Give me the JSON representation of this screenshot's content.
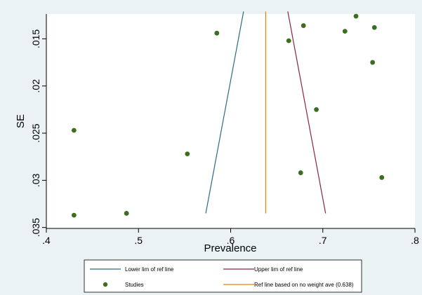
{
  "chart_data": {
    "type": "scatter",
    "xlabel": "Prevalence",
    "ylabel": "SE",
    "xlim": [
      0.4,
      0.8
    ],
    "ylim": [
      0.012,
      0.035
    ],
    "y_reversed": true,
    "x_ticks": [
      0.4,
      0.5,
      0.6,
      0.7,
      0.8
    ],
    "x_tick_labels": [
      ".4",
      ".5",
      ".6",
      ".7",
      ".8"
    ],
    "y_ticks": [
      0.015,
      0.02,
      0.025,
      0.03,
      0.035
    ],
    "y_tick_labels": [
      ".015",
      ".02",
      ".025",
      ".03",
      ".035"
    ],
    "grid": false,
    "ref_value": 0.638,
    "series": [
      {
        "name": "Studies",
        "kind": "scatter",
        "color": "#3b6e1f",
        "points": [
          {
            "x": 0.736,
            "y": 0.0126
          },
          {
            "x": 0.679,
            "y": 0.0136
          },
          {
            "x": 0.756,
            "y": 0.0138
          },
          {
            "x": 0.724,
            "y": 0.0142
          },
          {
            "x": 0.585,
            "y": 0.0144
          },
          {
            "x": 0.663,
            "y": 0.0152
          },
          {
            "x": 0.754,
            "y": 0.0175
          },
          {
            "x": 0.693,
            "y": 0.0225
          },
          {
            "x": 0.43,
            "y": 0.0247
          },
          {
            "x": 0.553,
            "y": 0.0272
          },
          {
            "x": 0.676,
            "y": 0.0292
          },
          {
            "x": 0.764,
            "y": 0.0297
          },
          {
            "x": 0.487,
            "y": 0.0335
          },
          {
            "x": 0.43,
            "y": 0.0337
          }
        ]
      },
      {
        "name": "Lower lim of ref line",
        "kind": "line",
        "color": "#2b6a8a",
        "points": [
          {
            "x": 0.573,
            "y": 0.0335
          },
          {
            "x": 0.614,
            "y": 0.0121
          }
        ]
      },
      {
        "name": "Upper lim of ref line",
        "kind": "line",
        "color": "#8e2340",
        "points": [
          {
            "x": 0.703,
            "y": 0.0335
          },
          {
            "x": 0.662,
            "y": 0.0121
          }
        ]
      },
      {
        "name": "Ref line based on no weight ave (0.638)",
        "kind": "line",
        "color": "#e08a00",
        "points": [
          {
            "x": 0.638,
            "y": 0.0335
          },
          {
            "x": 0.638,
            "y": 0.0121
          }
        ]
      }
    ],
    "legend": {
      "placement": "bottom",
      "entries": [
        {
          "label": "Lower lim of ref line",
          "kind": "line",
          "color": "#2b6a8a"
        },
        {
          "label": "Upper lim of ref line",
          "kind": "line",
          "color": "#8e2340"
        },
        {
          "label": "Studies",
          "kind": "marker",
          "color": "#3b6e1f"
        },
        {
          "label": "Ref line based on no weight ave (0.638)",
          "kind": "line",
          "color": "#e08a00"
        }
      ]
    }
  }
}
